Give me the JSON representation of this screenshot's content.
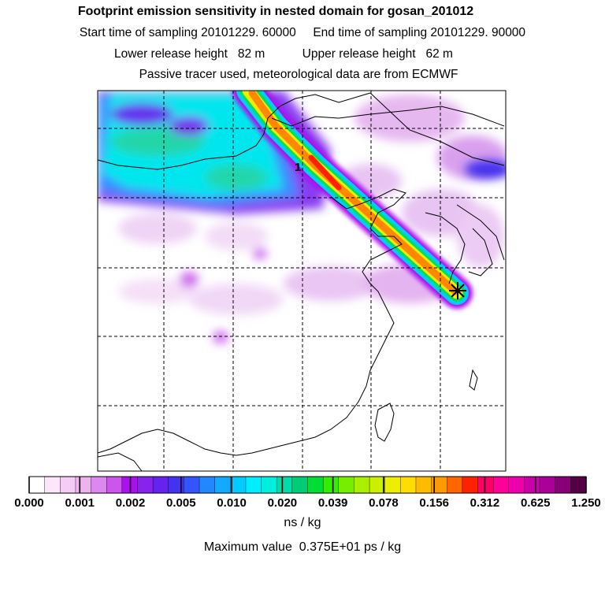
{
  "header": {
    "title": "Footprint emission sensitivity in nested domain for gosan_201012",
    "line2": "Start time of sampling 20101229. 60000     End time of sampling 20101229. 90000",
    "line3": "Lower release height   82 m           Upper release height   62 m",
    "line4": "Passive tracer used, meteorological data are from ECMWF"
  },
  "map": {
    "marker_label": "1",
    "release_marker": "star-marker-icon"
  },
  "colorbar": {
    "tick_labels": [
      "0.000",
      "0.001",
      "0.002",
      "0.005",
      "0.010",
      "0.020",
      "0.039",
      "0.078",
      "0.156",
      "0.312",
      "0.625",
      "1.250"
    ],
    "colors": [
      "#ffffff",
      "#fbe6fb",
      "#f5ccf5",
      "#eeb2ee",
      "#dd88ee",
      "#cc55ee",
      "#aa11ee",
      "#8822ee",
      "#6622ee",
      "#4433ee",
      "#3355ff",
      "#2288ff",
      "#11aaff",
      "#00ccff",
      "#00eeff",
      "#00eedd",
      "#00ddaa",
      "#00cc77",
      "#00dd33",
      "#33ee00",
      "#77ee00",
      "#aaee00",
      "#ccee00",
      "#eeee00",
      "#ffdd00",
      "#ffbb00",
      "#ff9900",
      "#ff6600",
      "#ff2200",
      "#ff0066",
      "#ff0099",
      "#ee00aa",
      "#cc00aa",
      "#aa0099",
      "#880077",
      "#550044"
    ],
    "units": "ns / kg"
  },
  "footer": {
    "max_value": "Maximum value  0.375E+01 ps / kg"
  }
}
